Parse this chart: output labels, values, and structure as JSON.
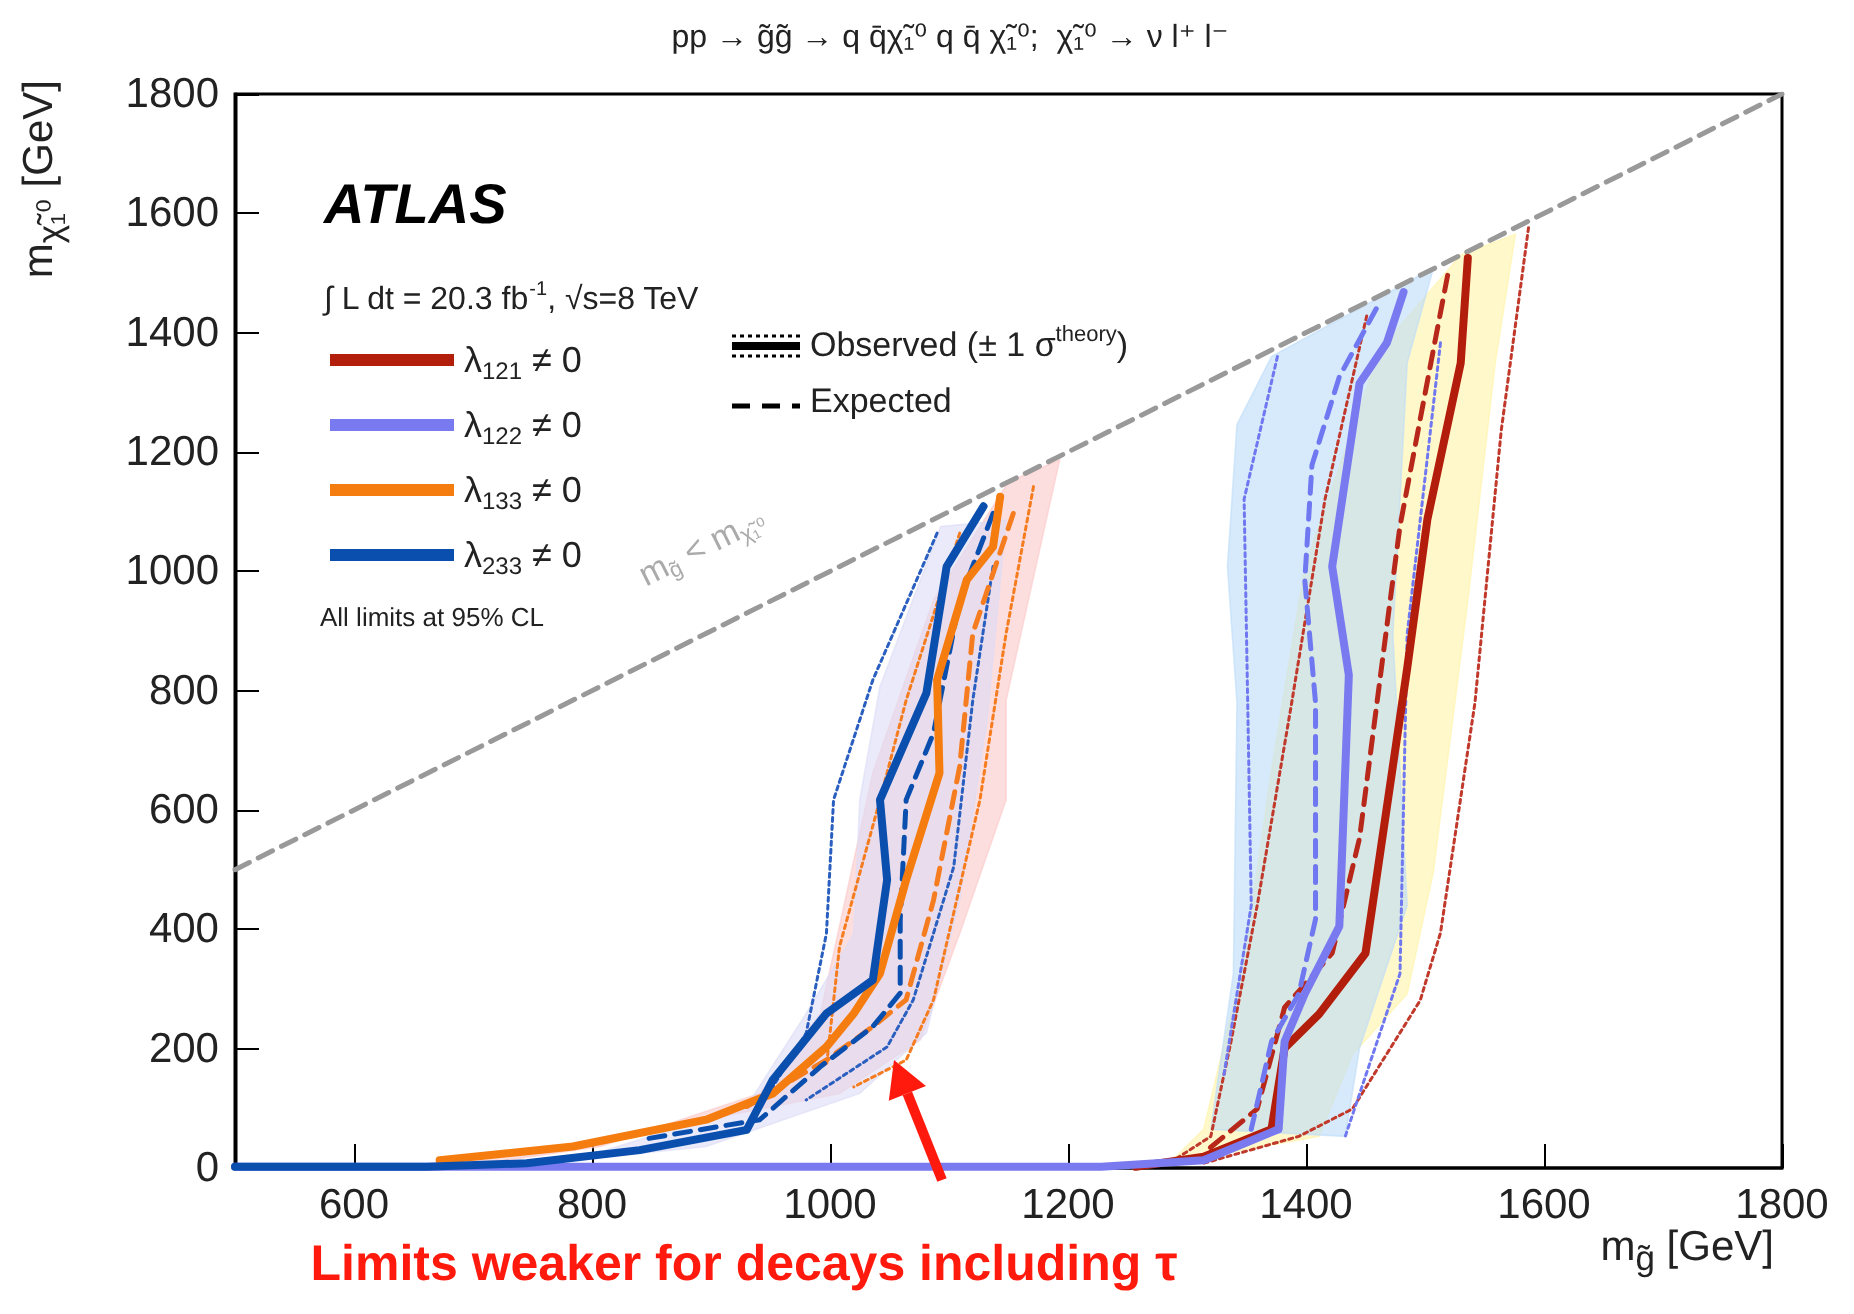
{
  "chart_data": {
    "type": "line",
    "title": "pp → g̃g̃ → q q̄χ̃₁⁰ q q̄ χ̃₁⁰;  χ̃₁⁰ → ν l⁺ l⁻",
    "xlabel": "m$_{g̃}$ [GeV]",
    "ylabel": "m$_{χ̃₁⁰}$ [GeV]",
    "xlim": [
      500,
      1800
    ],
    "xticks": [
      600,
      800,
      1000,
      1200,
      1400,
      1600,
      1800
    ],
    "ylim": [
      0,
      1800
    ],
    "yticks": [
      0,
      200,
      400,
      600,
      800,
      1000,
      1200,
      1400,
      1600,
      1800
    ],
    "legend": "top left",
    "annotations": [
      "ATLAS",
      "∫ L dt = 20.3 fb$^{-1}$, √s=8 TeV",
      "All limits at 95% CL",
      "Observed (± 1 σ$^{theory}$)",
      "Expected",
      "m$_{g̃}$ < m$_{χ̃₁⁰}$",
      "Limits weaker for decays including τ"
    ],
    "series": [
      {
        "type": "line",
        "color": "#999999",
        "line_style": "dashed",
        "x": [
          500,
          1800
        ],
        "values": [
          500,
          1800
        ]
      },
      {
        "type": "area",
        "color": "#fff3a8",
        "x": [
          1576,
          1559,
          1536,
          1507,
          1485,
          1439,
          1411,
          1285,
          1314,
          1348,
          1371,
          1399,
          1462,
          1530
        ],
        "values": [
          1565,
          1349,
          951,
          496,
          292,
          190,
          53,
          8,
          65,
          349,
          667,
          1008,
          1371,
          1530
        ]
      },
      {
        "type": "area",
        "color": "#bcdcf8",
        "x": [
          1507,
          1485,
          1473,
          1485,
          1445,
          1433,
          1320,
          1339,
          1342,
          1334,
          1342,
          1371,
          1490
        ],
        "values": [
          1508,
          1349,
          894,
          440,
          201,
          53,
          65,
          326,
          780,
          1008,
          1246,
          1360,
          1490
        ]
      },
      {
        "type": "area",
        "color": "#fbc8c8",
        "x": [
          1193,
          1148,
          1148,
          1109,
          1076,
          1008,
          896,
          784,
          672,
          689,
          807,
          941,
          992,
          1036,
          1087,
          1150
        ],
        "values": [
          1187,
          784,
          617,
          393,
          215,
          125,
          81,
          36,
          8,
          2,
          36,
          125,
          259,
          662,
          952,
          1150
        ]
      },
      {
        "type": "area",
        "color": "#dcdcf6",
        "x": [
          1148,
          1132,
          1109,
          1081,
          1025,
          896,
          784,
          930,
          980,
          1020,
          1025,
          1042,
          1093
        ],
        "values": [
          1086,
          751,
          449,
          226,
          125,
          36,
          13,
          103,
          259,
          393,
          617,
          807,
          1075
        ]
      },
      {
        "type": "line",
        "color": "#c0392b",
        "line_style": "dotted",
        "x": [
          1587,
          1564,
          1542,
          1513,
          1496,
          1439,
          1394,
          1314
        ],
        "values": [
          1576,
          1235,
          780,
          394,
          281,
          99,
          53,
          8
        ]
      },
      {
        "type": "line",
        "color": "#c0392b",
        "line_style": "dotted",
        "x": [
          1451,
          1416,
          1388,
          1359,
          1337,
          1320,
          1285
        ],
        "values": [
          1428,
          1121,
          780,
          440,
          212,
          53,
          8
        ]
      },
      {
        "type": "line",
        "color": "#6f78f0",
        "line_style": "dotted",
        "x": [
          1513,
          1485,
          1479,
          1433
        ],
        "values": [
          1383,
          894,
          326,
          53
        ]
      },
      {
        "type": "line",
        "color": "#6f78f0",
        "line_style": "dotted",
        "x": [
          1376,
          1348,
          1354,
          1331
        ],
        "values": [
          1360,
          1121,
          440,
          156
        ]
      },
      {
        "type": "line",
        "color": "#f57c1f",
        "line_style": "dotted",
        "x": [
          1171,
          1148,
          1126,
          1087,
          1064,
          1020
        ],
        "values": [
          1142,
          896,
          617,
          282,
          181,
          136
        ]
      },
      {
        "type": "line",
        "color": "#f57c1f",
        "line_style": "dotted",
        "x": [
          1109,
          1064,
          1042,
          1008,
          997
        ],
        "values": [
          1064,
          784,
          617,
          371,
          170
        ]
      },
      {
        "type": "line",
        "color": "#2a5fc0",
        "line_style": "dotted",
        "x": [
          1137,
          1120,
          1104,
          1070,
          1048,
          980
        ],
        "values": [
          1008,
          784,
          505,
          282,
          203,
          114
        ]
      },
      {
        "type": "line",
        "color": "#2a5fc0",
        "line_style": "dotted",
        "x": [
          1090,
          1036,
          1003,
          997,
          980,
          952
        ],
        "values": [
          1064,
          818,
          617,
          393,
          226,
          136
        ]
      },
      {
        "type": "line",
        "color": "#b8281a",
        "line_style": "dashed",
        "x": [
          1519,
          1507,
          1479,
          1470,
          1445,
          1422,
          1382,
          1359,
          1314
        ],
        "values": [
          1496,
          1371,
          1076,
          940,
          553,
          360,
          269,
          99,
          25
        ]
      },
      {
        "type": "line",
        "color": "#6f78f0",
        "line_style": "dashed",
        "x": [
          1459,
          1428,
          1405,
          1399,
          1408,
          1408,
          1394,
          1371,
          1354
        ],
        "values": [
          1440,
          1326,
          1178,
          985,
          780,
          417,
          292,
          212,
          65
        ]
      },
      {
        "type": "line",
        "color": "#f57c1f",
        "line_style": "dashed",
        "x": [
          1154,
          1120,
          1109,
          1087,
          1064,
          1036,
          997,
          930
        ],
        "values": [
          1097,
          896,
          673,
          449,
          282,
          237,
          181,
          103
        ]
      },
      {
        "type": "line",
        "color": "#0b4fae",
        "line_style": "dashed",
        "x": [
          1137,
          1109,
          1087,
          1064,
          1059,
          1059,
          1036,
          992,
          941,
          840
        ],
        "values": [
          1097,
          952,
          729,
          617,
          416,
          293,
          237,
          170,
          81,
          47
        ]
      },
      {
        "type": "line",
        "name": "λ$_{121}$ ≠ 0",
        "color": "#b31d0c",
        "line_style": "solid",
        "x": [
          1536,
          1530,
          1502,
          1485,
          1450,
          1411,
          1382,
          1371,
          1314,
          1257
        ],
        "values": [
          1525,
          1349,
          1087,
          837,
          360,
          258,
          201,
          65,
          19,
          2
        ]
      },
      {
        "type": "line",
        "name": "λ$_{122}$ ≠ 0",
        "color": "#7a7af0",
        "line_style": "solid",
        "x": [
          1482,
          1468,
          1445,
          1422,
          1436,
          1428,
          1399,
          1382,
          1377,
          1314,
          1228,
          500
        ],
        "values": [
          1468,
          1383,
          1315,
          1008,
          826,
          405,
          292,
          212,
          65,
          13,
          2,
          2
        ]
      },
      {
        "type": "line",
        "name": "λ$_{133}$ ≠ 0",
        "color": "#f57c0f",
        "line_style": "solid",
        "x": [
          1143,
          1137,
          1115,
          1090,
          1092,
          1064,
          1042,
          1020,
          997,
          952,
          896,
          784,
          672
        ],
        "values": [
          1125,
          1041,
          986,
          818,
          662,
          483,
          326,
          259,
          203,
          125,
          81,
          36,
          13
        ]
      },
      {
        "type": "line",
        "name": "λ$_{233}$ ≠ 0",
        "color": "#0b4fae",
        "line_style": "solid",
        "x": [
          1129,
          1098,
          1081,
          1042,
          1048,
          1036,
          997,
          952,
          930,
          840,
          745,
          661,
          500
        ],
        "values": [
          1109,
          1008,
          796,
          617,
          483,
          315,
          259,
          148,
          64,
          30,
          8,
          2,
          2
        ]
      }
    ]
  }
}
